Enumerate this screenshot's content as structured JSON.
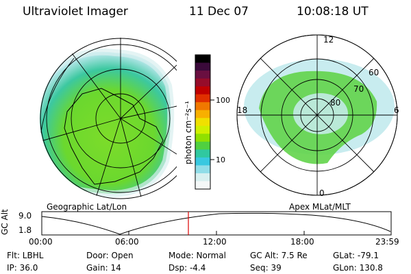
{
  "header": {
    "instrument": "Ultraviolet Imager",
    "date": "11 Dec 07",
    "time": "10:08:18 UT"
  },
  "colorbar": {
    "label": "photon cm⁻²s⁻¹",
    "ticks": [
      "100",
      "10"
    ],
    "colors": [
      "#000000",
      "#3a0a3a",
      "#6a0f40",
      "#960c2a",
      "#c00000",
      "#e03000",
      "#f07800",
      "#f8b000",
      "#f0e000",
      "#d0f000",
      "#90e000",
      "#50d040",
      "#30c8a0",
      "#38c8e0",
      "#90dde8",
      "#d8f0f0",
      "#f4f8f8"
    ]
  },
  "left_map": {
    "caption": "Geographic Lat/Lon"
  },
  "right_map": {
    "caption": "Apex MLat/MLT",
    "mlt_labels": [
      "12",
      "18",
      "6",
      "0"
    ],
    "lat_labels": [
      "60",
      "70",
      "80"
    ]
  },
  "timeline": {
    "axis_label": "GC Alt",
    "ticks_y": [
      "9.0",
      "1.8"
    ],
    "ticks_x": [
      "00:00",
      "06:00",
      "12:00",
      "18:00",
      "23:59"
    ],
    "marker_time": "10:08:18",
    "marker_color": "#dd0000"
  },
  "info": {
    "filter": "Flt: LBHL",
    "ip": "IP: 36.0",
    "door": "Door: Open",
    "gain": "Gain: 14",
    "mode": "Mode: Normal",
    "dsp": "Dsp:   -4.4",
    "gcalt": "GC Alt: 7.5 Re",
    "seq": "Seq: 39",
    "glat": "GLat: -79.1",
    "glon": "GLon: 130.8"
  }
}
